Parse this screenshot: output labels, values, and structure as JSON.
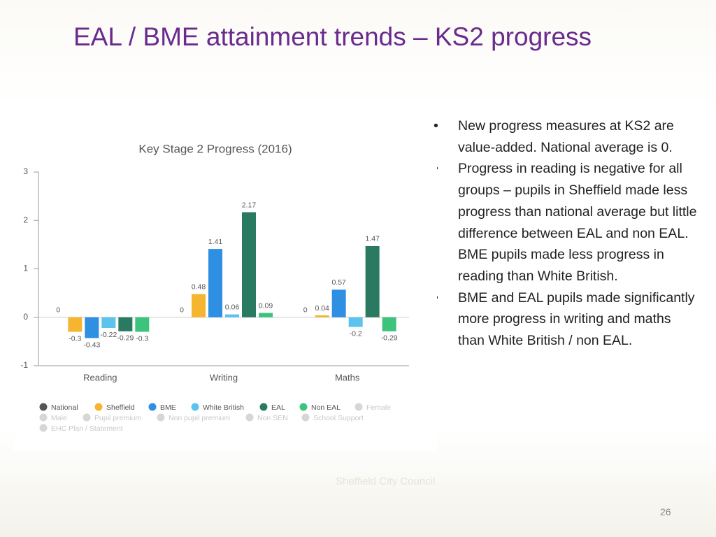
{
  "slide": {
    "title": "EAL / BME attainment trends – KS2 progress",
    "bullets": [
      "New progress measures at KS2 are value-added. National average is 0.",
      "Progress in reading is negative for all groups – pupils in Sheffield made less progress than national average but little difference between EAL and non EAL. BME pupils made less progress in reading than White British.",
      "BME and EAL pupils made significantly more progress in writing and maths than White British / non EAL."
    ],
    "watermark": "Sheffield City Council",
    "page_number": "26"
  },
  "chart_data": {
    "type": "bar",
    "title": "Key Stage 2 Progress (2016)",
    "categories": [
      "Reading",
      "Writing",
      "Maths"
    ],
    "series": [
      {
        "name": "National",
        "color": "#555555",
        "values": [
          0,
          0,
          0
        ]
      },
      {
        "name": "Sheffield",
        "color": "#f6b52e",
        "values": [
          -0.3,
          0.48,
          0.04
        ]
      },
      {
        "name": "BME",
        "color": "#2e8fe3",
        "values": [
          -0.43,
          1.41,
          0.57
        ]
      },
      {
        "name": "White British",
        "color": "#5cc3ee",
        "values": [
          -0.22,
          0.06,
          -0.2
        ]
      },
      {
        "name": "EAL",
        "color": "#2a7a62",
        "values": [
          -0.29,
          2.17,
          1.47
        ]
      },
      {
        "name": "Non EAL",
        "color": "#3cc47c",
        "values": [
          -0.3,
          0.09,
          -0.29
        ]
      },
      {
        "name": "Female",
        "color": "#d6d6d6",
        "values": [
          null,
          null,
          null
        ]
      },
      {
        "name": "Male",
        "color": "#d6d6d6",
        "values": [
          null,
          null,
          null
        ]
      },
      {
        "name": "Pupil premium",
        "color": "#d6d6d6",
        "values": [
          null,
          null,
          null
        ]
      },
      {
        "name": "Non pupil premium",
        "color": "#d6d6d6",
        "values": [
          null,
          null,
          null
        ]
      },
      {
        "name": "Non SEN",
        "color": "#d6d6d6",
        "values": [
          null,
          null,
          null
        ]
      },
      {
        "name": "School Support",
        "color": "#d6d6d6",
        "values": [
          null,
          null,
          null
        ]
      },
      {
        "name": "EHC Plan / Statement",
        "color": "#d6d6d6",
        "values": [
          null,
          null,
          null
        ]
      }
    ],
    "ylim": [
      -1,
      3
    ],
    "yticks": [
      -1,
      0,
      1,
      2,
      3
    ],
    "grid": false
  }
}
